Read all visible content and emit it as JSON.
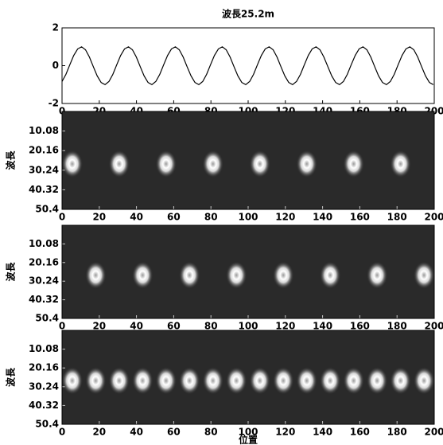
{
  "chart_data": [
    {
      "type": "line",
      "title": "波長25.2m",
      "color": "#000000",
      "x": [
        0,
        2.1,
        4.2,
        6.3,
        8.4,
        10.5,
        12.6,
        14.7,
        16.8,
        18.9,
        21,
        23.1,
        25.2,
        27.3,
        29.4,
        31.5,
        33.6,
        35.7,
        37.8,
        39.9,
        42,
        44.1,
        46.2,
        48.3,
        50.4,
        52.5,
        54.6,
        56.7,
        58.8,
        60.9,
        63,
        65.1,
        67.2,
        69.3,
        71.4,
        73.5,
        75.6,
        77.7,
        79.8,
        81.9,
        84,
        86.1,
        88.2,
        90.3,
        92.4,
        94.5,
        96.6,
        98.7,
        100.8,
        102.9,
        105,
        107.1,
        109.2,
        111.3,
        113.4,
        115.5,
        117.6,
        119.7,
        121.8,
        123.9,
        126,
        128.1,
        130.2,
        132.3,
        134.4,
        136.5,
        138.6,
        140.7,
        142.8,
        144.9,
        147,
        149.1,
        151.2,
        153.3,
        155.4,
        157.5,
        159.6,
        161.7,
        163.8,
        165.9,
        168,
        170.1,
        172.2,
        174.3,
        176.4,
        178.5,
        180.6,
        182.7,
        184.8,
        186.9,
        189,
        191.1,
        193.2,
        195.3,
        197.4,
        199.5
      ],
      "values": [
        -0.84,
        -0.46,
        0.05,
        0.54,
        0.89,
        1.0,
        0.84,
        0.46,
        -0.05,
        -0.54,
        -0.89,
        -1.0,
        -0.84,
        -0.46,
        0.05,
        0.54,
        0.89,
        1.0,
        0.84,
        0.46,
        -0.05,
        -0.54,
        -0.89,
        -1.0,
        -0.84,
        -0.46,
        0.05,
        0.54,
        0.89,
        1.0,
        0.84,
        0.46,
        -0.05,
        -0.54,
        -0.89,
        -1.0,
        -0.84,
        -0.46,
        0.05,
        0.54,
        0.89,
        1.0,
        0.84,
        0.46,
        -0.05,
        -0.54,
        -0.89,
        -1.0,
        -0.84,
        -0.46,
        0.05,
        0.54,
        0.89,
        1.0,
        0.84,
        0.46,
        -0.05,
        -0.54,
        -0.89,
        -1.0,
        -0.84,
        -0.46,
        0.05,
        0.54,
        0.89,
        1.0,
        0.84,
        0.46,
        -0.05,
        -0.54,
        -0.89,
        -1.0,
        -0.84,
        -0.46,
        0.05,
        0.54,
        0.89,
        1.0,
        0.84,
        0.46,
        -0.05,
        -0.54,
        -0.89,
        -1.0,
        -0.84,
        -0.46,
        0.05,
        0.54,
        0.89,
        1.0,
        0.84,
        0.46,
        -0.05,
        -0.54,
        -0.89,
        -1.0
      ],
      "xlim": [
        0,
        200
      ],
      "xticks": [
        0,
        20,
        40,
        60,
        80,
        100,
        120,
        140,
        160,
        180,
        200
      ],
      "ylim": [
        -2,
        2
      ],
      "yticks": [
        -2,
        0,
        2
      ]
    },
    {
      "type": "heatmap",
      "ylabel": "波長",
      "x": [
        5.5,
        30.7,
        55.9,
        81.1,
        106.3,
        131.5,
        156.7,
        181.9
      ],
      "y": [
        27,
        27,
        27,
        27,
        27,
        27,
        27,
        27
      ],
      "xlim": [
        0,
        200
      ],
      "xticks": [
        0,
        20,
        40,
        60,
        80,
        100,
        120,
        140,
        160,
        180,
        200
      ],
      "ylim": [
        0,
        50.4
      ],
      "y_inverted": true,
      "yticks": [
        10.08,
        20.16,
        30.24,
        40.32,
        50.4
      ]
    },
    {
      "type": "heatmap",
      "ylabel": "波長",
      "x": [
        18.1,
        43.3,
        68.5,
        93.7,
        118.9,
        144.1,
        169.3,
        194.5
      ],
      "y": [
        27,
        27,
        27,
        27,
        27,
        27,
        27,
        27
      ],
      "xlim": [
        0,
        200
      ],
      "xticks": [
        0,
        20,
        40,
        60,
        80,
        100,
        120,
        140,
        160,
        180,
        200
      ],
      "ylim": [
        0,
        50.4
      ],
      "y_inverted": true,
      "yticks": [
        10.08,
        20.16,
        30.24,
        40.32,
        50.4
      ]
    },
    {
      "type": "heatmap",
      "ylabel": "波長",
      "xlabel": "位置",
      "x": [
        5.5,
        18.1,
        30.7,
        43.3,
        55.9,
        68.5,
        81.1,
        93.7,
        106.3,
        118.9,
        131.5,
        144.1,
        156.7,
        169.3,
        181.9,
        194.5
      ],
      "y": [
        27,
        27,
        27,
        27,
        27,
        27,
        27,
        27,
        27,
        27,
        27,
        27,
        27,
        27,
        27,
        27
      ],
      "xlim": [
        0,
        200
      ],
      "xticks": [
        0,
        20,
        40,
        60,
        80,
        100,
        120,
        140,
        160,
        180,
        200
      ],
      "ylim": [
        0,
        50.4
      ],
      "y_inverted": true,
      "yticks": [
        10.08,
        20.16,
        30.24,
        40.32,
        50.4
      ]
    }
  ]
}
